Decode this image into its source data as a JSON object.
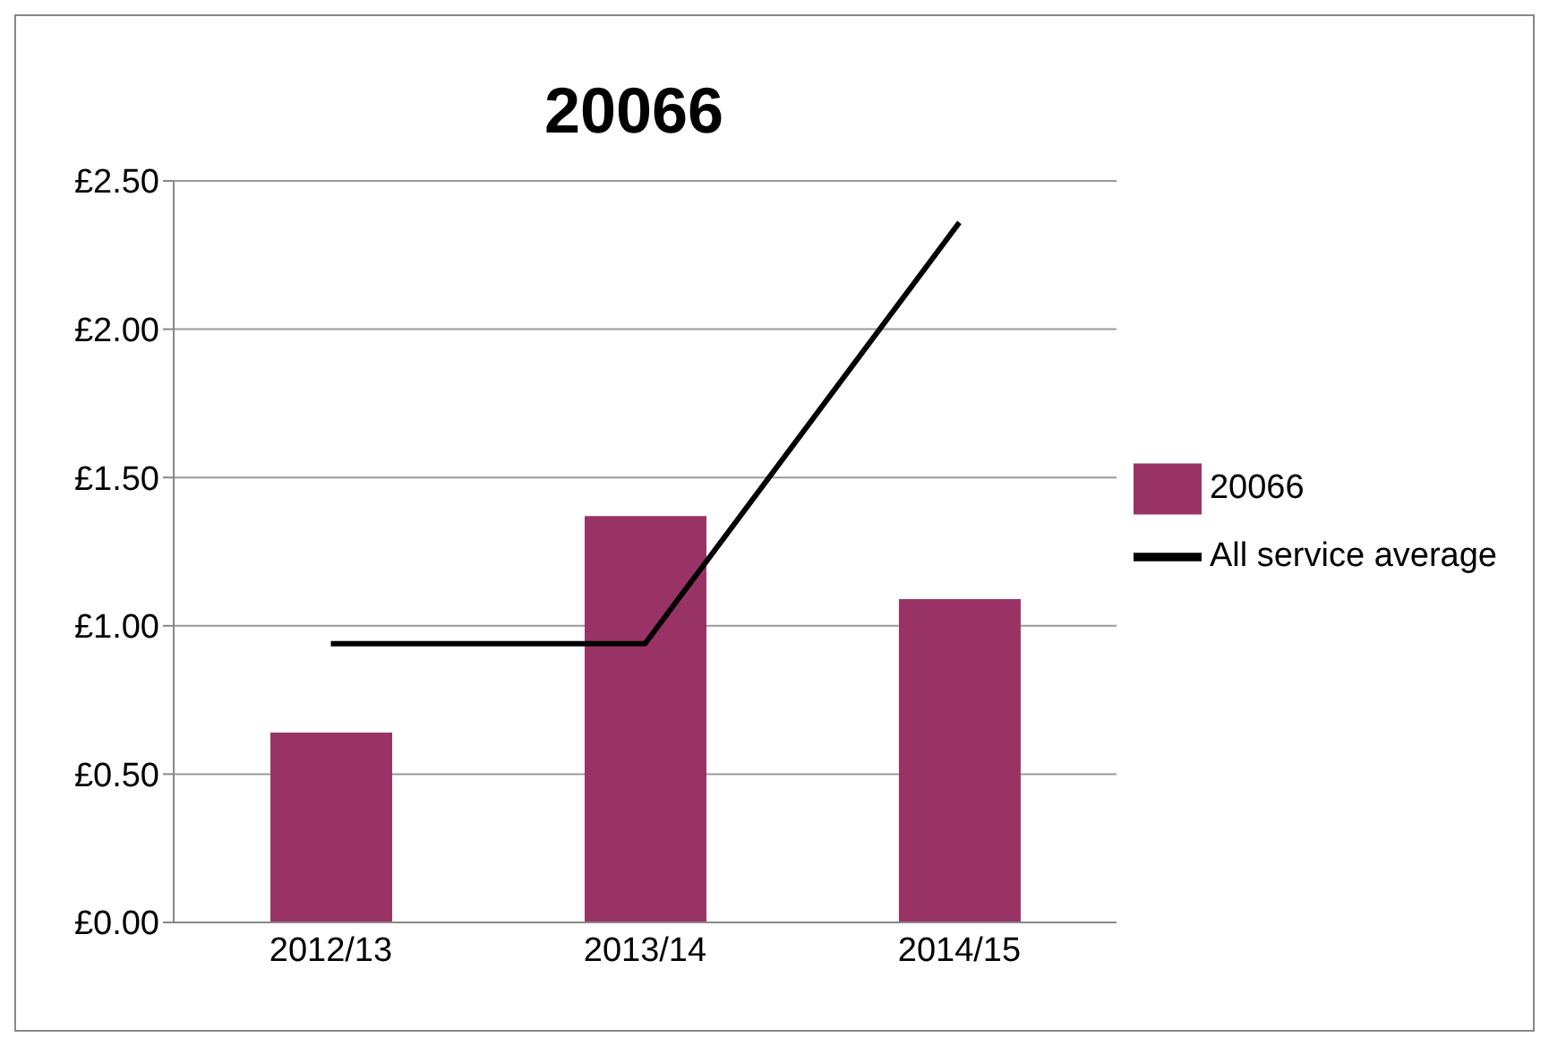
{
  "chart_data": {
    "type": "bar",
    "title": "20066",
    "categories": [
      "2012/13",
      "2013/14",
      "2014/15"
    ],
    "series": [
      {
        "name": "20066",
        "color": "#993366",
        "values": [
          0.64,
          1.37,
          1.09
        ]
      },
      {
        "name": "All service average",
        "type": "line",
        "color": "#000000",
        "values": [
          0.94,
          0.94,
          2.36
        ]
      }
    ],
    "ylim": [
      0,
      2.5
    ],
    "yticks": [
      {
        "value": 0,
        "label": "£0.00"
      },
      {
        "value": 0.5,
        "label": "£0.50"
      },
      {
        "value": 1,
        "label": "£1.00"
      },
      {
        "value": 1.5,
        "label": "£1.50"
      },
      {
        "value": 2,
        "label": "£2.00"
      },
      {
        "value": 2.5,
        "label": "£2.50"
      }
    ],
    "grid": "y",
    "legend": "right",
    "marker": "none"
  }
}
